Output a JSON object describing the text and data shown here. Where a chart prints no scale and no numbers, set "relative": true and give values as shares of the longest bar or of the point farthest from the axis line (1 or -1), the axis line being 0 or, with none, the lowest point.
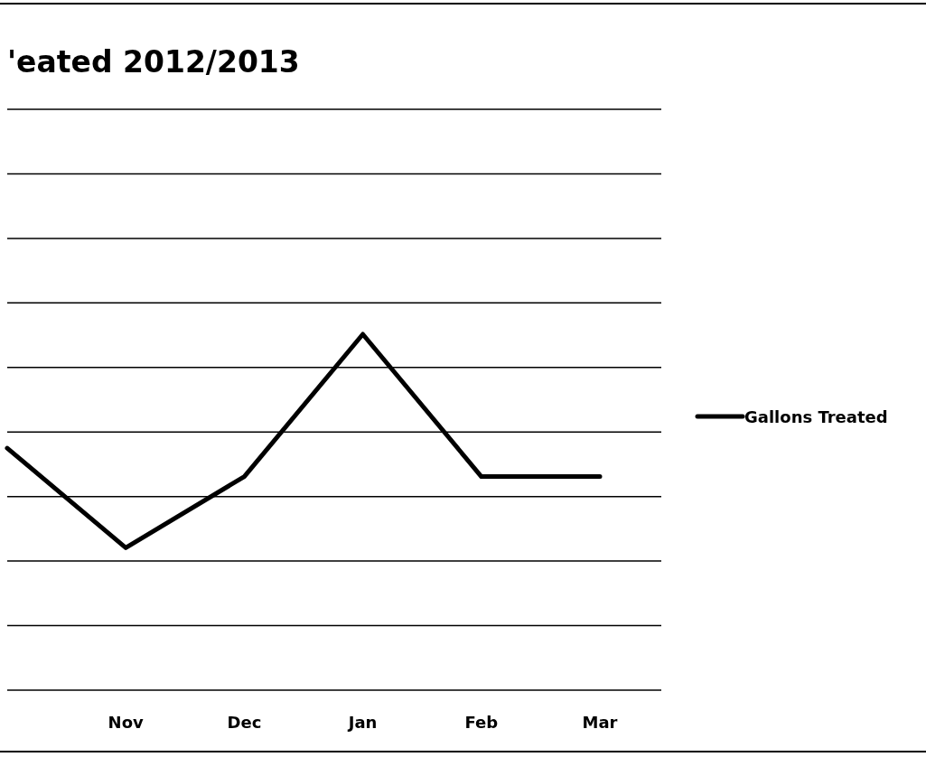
{
  "chart_data": {
    "type": "line",
    "title": "'eated 2012/2013",
    "categories": [
      null,
      "Nov",
      "Dec",
      "Jan",
      "Feb",
      "Mar"
    ],
    "series": [
      {
        "name": "Gallons Treated",
        "color": "#000000",
        "values": [
          0.68,
          0.4,
          0.6,
          1,
          0.6,
          0.6
        ]
      }
    ],
    "relative": true,
    "grid": "y",
    "legend": "right",
    "marker": "none",
    "line_style": "solid"
  }
}
